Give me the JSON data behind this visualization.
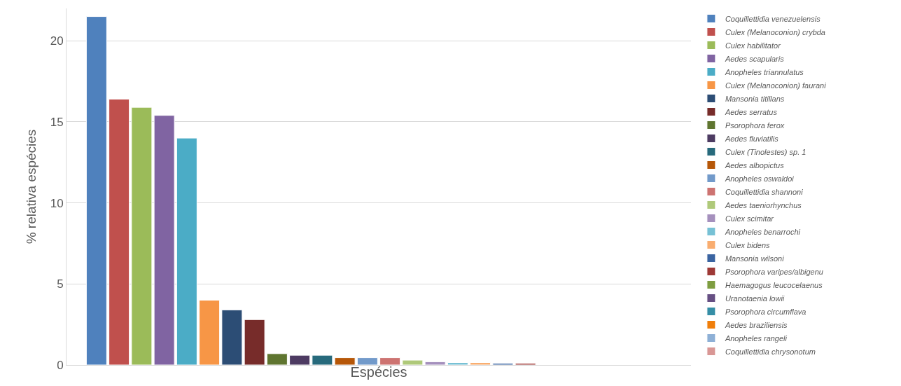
{
  "chart_data": {
    "type": "bar",
    "xlabel": "Espécies",
    "ylabel": "% relativa espécies",
    "categories": [
      null
    ],
    "ylim": [
      0,
      22
    ],
    "yticks": [
      0,
      5,
      10,
      15,
      20
    ],
    "grid": "y",
    "legend": "right",
    "tick_labels": "y",
    "series": [
      {
        "name": "Coquillettidia venezuelensis",
        "color": "#4f81bd",
        "values": [
          21.5
        ]
      },
      {
        "name": "Culex (Melanoconion) crybda",
        "color": "#c0504d",
        "values": [
          16.4
        ]
      },
      {
        "name": "Culex habilitator",
        "color": "#9bbb59",
        "values": [
          15.9
        ]
      },
      {
        "name": "Aedes scapularis",
        "color": "#8064a2",
        "values": [
          15.4
        ]
      },
      {
        "name": "Anopheles triannulatus",
        "color": "#4bacc6",
        "values": [
          14.0
        ]
      },
      {
        "name": "Culex (Melanoconion) faurani",
        "color": "#f79646",
        "values": [
          4.0
        ]
      },
      {
        "name": "Mansonia titillans",
        "color": "#2c4d75",
        "values": [
          3.4
        ]
      },
      {
        "name": "Aedes serratus",
        "color": "#772c2a",
        "values": [
          2.8
        ]
      },
      {
        "name": "Psorophora ferox",
        "color": "#5f7530",
        "values": [
          0.7
        ]
      },
      {
        "name": "Aedes fluviatilis",
        "color": "#4d3b62",
        "values": [
          0.6
        ]
      },
      {
        "name": "Culex (Tinolestes) sp. 1",
        "color": "#276a7c",
        "values": [
          0.6
        ]
      },
      {
        "name": "Aedes albopictus",
        "color": "#b65708",
        "values": [
          0.45
        ]
      },
      {
        "name": "Anopheles oswaldoi",
        "color": "#729aca",
        "values": [
          0.45
        ]
      },
      {
        "name": "Coquillettidia shannoni",
        "color": "#cd7371",
        "values": [
          0.45
        ]
      },
      {
        "name": "Aedes taeniorhynchus",
        "color": "#afc97a",
        "values": [
          0.3
        ]
      },
      {
        "name": "Culex scimitar",
        "color": "#a590bd",
        "values": [
          0.2
        ]
      },
      {
        "name": "Anopheles benarrochi",
        "color": "#77c1d5",
        "values": [
          0.15
        ]
      },
      {
        "name": "Culex bidens",
        "color": "#f9ad70",
        "values": [
          0.15
        ]
      },
      {
        "name": "Mansonia wilsoni",
        "color": "#3a64a1",
        "values": [
          0.1
        ]
      },
      {
        "name": "Psorophora varipes/albigenu",
        "color": "#9e3936",
        "values": [
          0.1
        ]
      },
      {
        "name": "Haemagogus leucocelaenus",
        "color": "#7e9d40",
        "values": [
          null
        ]
      },
      {
        "name": "Uranotaenia lowii",
        "color": "#664f83",
        "values": [
          null
        ]
      },
      {
        "name": "Psorophora circumflava",
        "color": "#358ea6",
        "values": [
          null
        ]
      },
      {
        "name": "Aedes braziliensis",
        "color": "#f07e0a",
        "values": [
          null
        ]
      },
      {
        "name": "Anopheles rangeli",
        "color": "#8eb0d6",
        "values": [
          null
        ]
      },
      {
        "name": "Coquillettidia chrysonotum",
        "color": "#d99795",
        "values": [
          null
        ]
      }
    ]
  }
}
